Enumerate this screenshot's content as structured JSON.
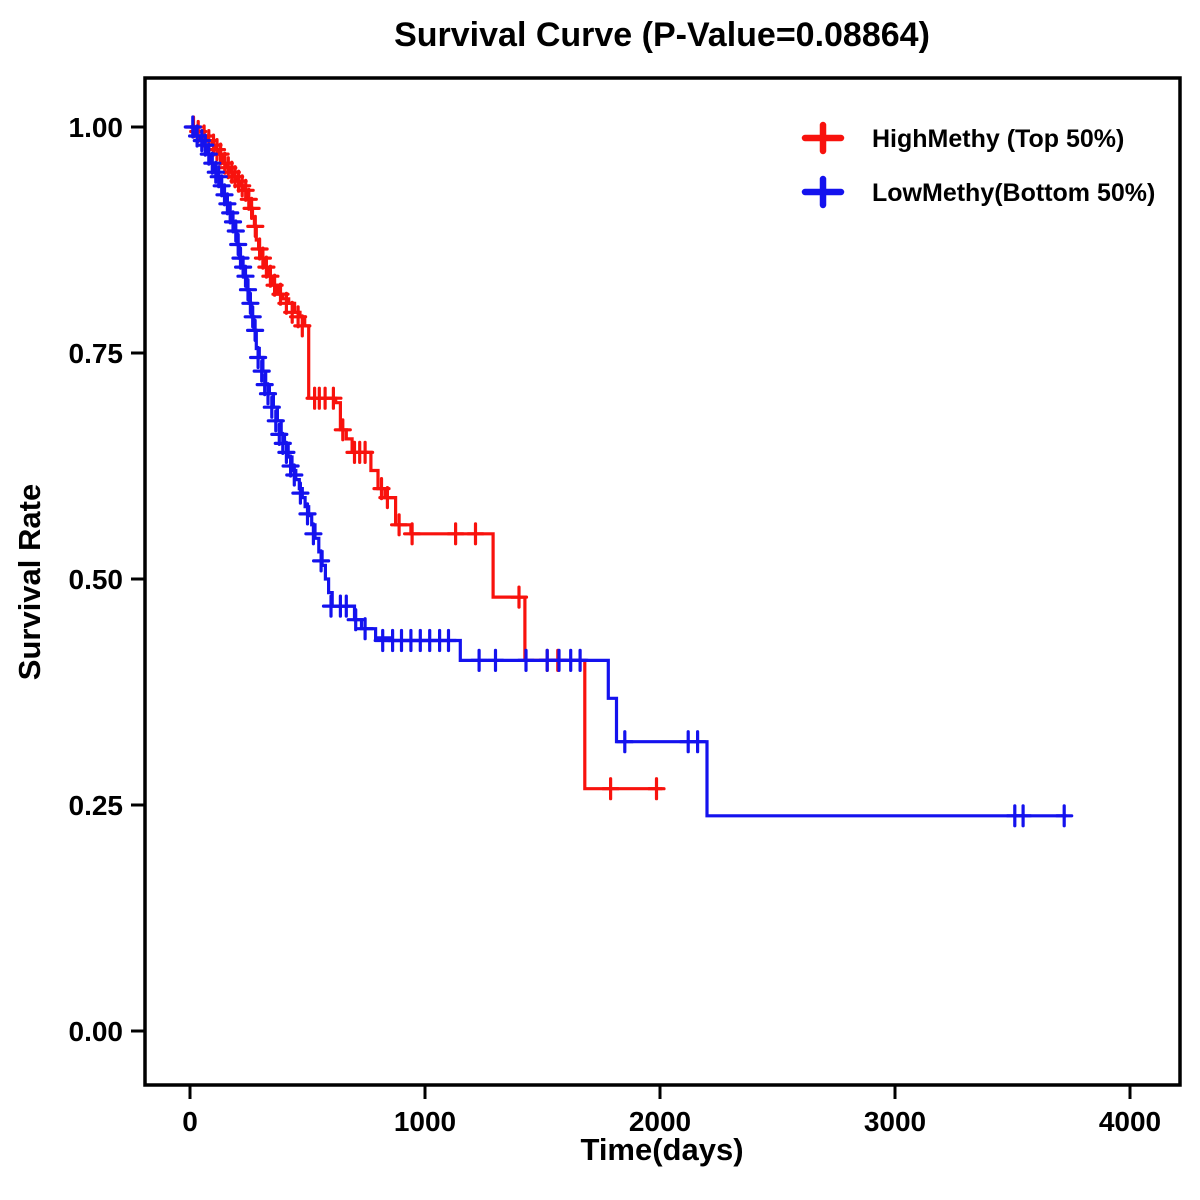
{
  "title": "Survival Curve (P-Value=0.08864)",
  "legend": {
    "items": [
      {
        "label": "HighMethy (Top 50%)",
        "color": "#F8120D"
      },
      {
        "label": "LowMethy(Bottom 50%)",
        "color": "#1412EE"
      }
    ]
  },
  "chart_data": {
    "type": "line",
    "subtype": "kaplan-meier-step-survival",
    "title": "Survival Curve (P-Value=0.08864)",
    "p_value": 0.08864,
    "xlabel": "Time(days)",
    "ylabel": "Survival Rate",
    "xlim": [
      -190,
      4210
    ],
    "ylim": [
      -0.05,
      1.05
    ],
    "x_ticks": [
      0,
      1000,
      2000,
      3000,
      4000
    ],
    "y_ticks": [
      1.0,
      0.75,
      0.5,
      0.25,
      0.0
    ],
    "y_tick_labels": [
      "1.00",
      "0.75",
      "0.50",
      "0.25",
      "0.00"
    ],
    "grid": false,
    "legend_position": "top-right",
    "series": [
      {
        "name": "HighMethy (Top 50%)",
        "color": "#F8120D",
        "steps": [
          [
            0,
            1.0
          ],
          [
            30,
            0.995
          ],
          [
            55,
            0.99
          ],
          [
            75,
            0.985
          ],
          [
            95,
            0.98
          ],
          [
            110,
            0.975
          ],
          [
            125,
            0.97
          ],
          [
            140,
            0.96
          ],
          [
            155,
            0.955
          ],
          [
            170,
            0.95
          ],
          [
            185,
            0.945
          ],
          [
            200,
            0.94
          ],
          [
            215,
            0.935
          ],
          [
            230,
            0.93
          ],
          [
            245,
            0.92
          ],
          [
            258,
            0.91
          ],
          [
            266,
            0.9
          ],
          [
            274,
            0.89
          ],
          [
            282,
            0.875
          ],
          [
            292,
            0.865
          ],
          [
            302,
            0.855
          ],
          [
            318,
            0.845
          ],
          [
            334,
            0.835
          ],
          [
            352,
            0.825
          ],
          [
            372,
            0.815
          ],
          [
            395,
            0.81
          ],
          [
            420,
            0.805
          ],
          [
            445,
            0.795
          ],
          [
            468,
            0.79
          ],
          [
            488,
            0.78
          ],
          [
            505,
            0.7
          ],
          [
            620,
            0.695
          ],
          [
            640,
            0.665
          ],
          [
            665,
            0.655
          ],
          [
            690,
            0.64
          ],
          [
            770,
            0.62
          ],
          [
            800,
            0.6
          ],
          [
            830,
            0.59
          ],
          [
            875,
            0.56
          ],
          [
            940,
            0.55
          ],
          [
            1290,
            0.48
          ],
          [
            1425,
            0.41
          ],
          [
            1680,
            0.268
          ],
          [
            2010,
            0.268
          ]
        ],
        "censors": [
          [
            15,
            1.0
          ],
          [
            35,
            0.995
          ],
          [
            60,
            0.99
          ],
          [
            80,
            0.985
          ],
          [
            100,
            0.98
          ],
          [
            115,
            0.975
          ],
          [
            130,
            0.97
          ],
          [
            148,
            0.96
          ],
          [
            163,
            0.955
          ],
          [
            178,
            0.95
          ],
          [
            192,
            0.945
          ],
          [
            207,
            0.94
          ],
          [
            222,
            0.935
          ],
          [
            237,
            0.93
          ],
          [
            250,
            0.92
          ],
          [
            262,
            0.91
          ],
          [
            278,
            0.89
          ],
          [
            296,
            0.865
          ],
          [
            310,
            0.855
          ],
          [
            325,
            0.845
          ],
          [
            342,
            0.835
          ],
          [
            360,
            0.825
          ],
          [
            385,
            0.815
          ],
          [
            410,
            0.805
          ],
          [
            435,
            0.795
          ],
          [
            460,
            0.79
          ],
          [
            478,
            0.78
          ],
          [
            530,
            0.7
          ],
          [
            550,
            0.7
          ],
          [
            575,
            0.7
          ],
          [
            610,
            0.7
          ],
          [
            650,
            0.665
          ],
          [
            700,
            0.64
          ],
          [
            722,
            0.64
          ],
          [
            745,
            0.64
          ],
          [
            815,
            0.6
          ],
          [
            840,
            0.59
          ],
          [
            890,
            0.56
          ],
          [
            945,
            0.55
          ],
          [
            1130,
            0.55
          ],
          [
            1215,
            0.55
          ],
          [
            1400,
            0.48
          ],
          [
            1520,
            0.41
          ],
          [
            1565,
            0.41
          ],
          [
            1790,
            0.268
          ],
          [
            1985,
            0.268
          ]
        ]
      },
      {
        "name": "LowMethy(Bottom 50%)",
        "color": "#1412EE",
        "steps": [
          [
            0,
            1.0
          ],
          [
            25,
            0.99
          ],
          [
            45,
            0.985
          ],
          [
            60,
            0.98
          ],
          [
            75,
            0.97
          ],
          [
            90,
            0.96
          ],
          [
            105,
            0.95
          ],
          [
            118,
            0.945
          ],
          [
            130,
            0.935
          ],
          [
            142,
            0.925
          ],
          [
            154,
            0.915
          ],
          [
            166,
            0.905
          ],
          [
            178,
            0.895
          ],
          [
            190,
            0.885
          ],
          [
            200,
            0.87
          ],
          [
            210,
            0.855
          ],
          [
            220,
            0.845
          ],
          [
            230,
            0.835
          ],
          [
            242,
            0.82
          ],
          [
            252,
            0.805
          ],
          [
            262,
            0.79
          ],
          [
            272,
            0.775
          ],
          [
            282,
            0.755
          ],
          [
            295,
            0.745
          ],
          [
            310,
            0.73
          ],
          [
            322,
            0.715
          ],
          [
            338,
            0.705
          ],
          [
            355,
            0.69
          ],
          [
            372,
            0.675
          ],
          [
            388,
            0.66
          ],
          [
            402,
            0.65
          ],
          [
            418,
            0.635
          ],
          [
            434,
            0.62
          ],
          [
            450,
            0.61
          ],
          [
            465,
            0.6
          ],
          [
            478,
            0.59
          ],
          [
            490,
            0.58
          ],
          [
            505,
            0.57
          ],
          [
            518,
            0.56
          ],
          [
            532,
            0.545
          ],
          [
            548,
            0.53
          ],
          [
            562,
            0.515
          ],
          [
            576,
            0.5
          ],
          [
            590,
            0.485
          ],
          [
            605,
            0.47
          ],
          [
            700,
            0.455
          ],
          [
            730,
            0.445
          ],
          [
            790,
            0.435
          ],
          [
            850,
            0.432
          ],
          [
            1150,
            0.41
          ],
          [
            1780,
            0.368
          ],
          [
            1815,
            0.32
          ],
          [
            2200,
            0.238
          ],
          [
            3730,
            0.238
          ]
        ],
        "censors": [
          [
            12,
            1.0
          ],
          [
            30,
            0.99
          ],
          [
            50,
            0.985
          ],
          [
            65,
            0.98
          ],
          [
            80,
            0.97
          ],
          [
            95,
            0.96
          ],
          [
            110,
            0.95
          ],
          [
            122,
            0.945
          ],
          [
            135,
            0.935
          ],
          [
            147,
            0.925
          ],
          [
            159,
            0.915
          ],
          [
            171,
            0.905
          ],
          [
            183,
            0.895
          ],
          [
            195,
            0.885
          ],
          [
            205,
            0.87
          ],
          [
            215,
            0.855
          ],
          [
            226,
            0.845
          ],
          [
            236,
            0.835
          ],
          [
            247,
            0.82
          ],
          [
            257,
            0.805
          ],
          [
            267,
            0.79
          ],
          [
            277,
            0.775
          ],
          [
            290,
            0.745
          ],
          [
            305,
            0.73
          ],
          [
            318,
            0.715
          ],
          [
            332,
            0.705
          ],
          [
            348,
            0.69
          ],
          [
            365,
            0.675
          ],
          [
            380,
            0.66
          ],
          [
            395,
            0.65
          ],
          [
            410,
            0.64
          ],
          [
            428,
            0.625
          ],
          [
            444,
            0.615
          ],
          [
            470,
            0.595
          ],
          [
            500,
            0.572
          ],
          [
            525,
            0.55
          ],
          [
            558,
            0.52
          ],
          [
            600,
            0.47
          ],
          [
            640,
            0.47
          ],
          [
            665,
            0.47
          ],
          [
            705,
            0.455
          ],
          [
            745,
            0.445
          ],
          [
            820,
            0.432
          ],
          [
            862,
            0.432
          ],
          [
            900,
            0.432
          ],
          [
            940,
            0.432
          ],
          [
            980,
            0.432
          ],
          [
            1020,
            0.432
          ],
          [
            1062,
            0.432
          ],
          [
            1100,
            0.432
          ],
          [
            1230,
            0.41
          ],
          [
            1300,
            0.41
          ],
          [
            1430,
            0.41
          ],
          [
            1520,
            0.41
          ],
          [
            1570,
            0.41
          ],
          [
            1620,
            0.41
          ],
          [
            1660,
            0.41
          ],
          [
            1850,
            0.32
          ],
          [
            2120,
            0.32
          ],
          [
            2160,
            0.32
          ],
          [
            3510,
            0.238
          ],
          [
            3545,
            0.238
          ],
          [
            3720,
            0.238
          ]
        ]
      }
    ]
  }
}
